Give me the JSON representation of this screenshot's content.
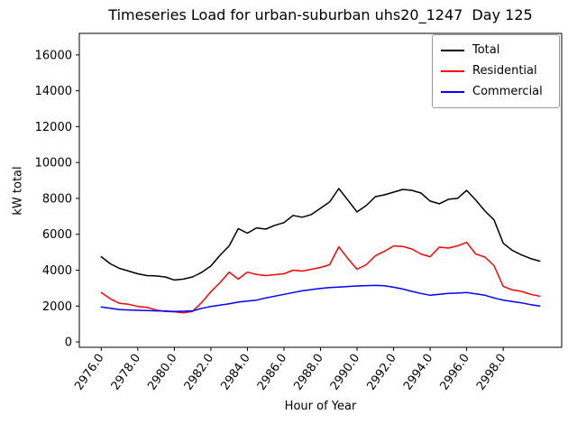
{
  "title": "Timeseries Load for urban-suburban uhs20_1247  Day 125",
  "chart_data": {
    "type": "line",
    "title": "Timeseries Load for urban-suburban uhs20_1247  Day 125",
    "xlabel": "Hour of Year",
    "ylabel": "kW total",
    "grid": false,
    "legend_position": "upper right",
    "xlim": [
      2974.8,
      3001.2
    ],
    "ylim": [
      -300,
      17200
    ],
    "xticks": [
      2976,
      2978,
      2980,
      2982,
      2984,
      2986,
      2988,
      2990,
      2992,
      2994,
      2996,
      2998
    ],
    "xtick_labels": [
      "2976.0",
      "2978.0",
      "2980.0",
      "2982.0",
      "2984.0",
      "2986.0",
      "2988.0",
      "2990.0",
      "2992.0",
      "2994.0",
      "2996.0",
      "2998.0"
    ],
    "yticks": [
      0,
      2000,
      4000,
      6000,
      8000,
      10000,
      12000,
      14000,
      16000
    ],
    "x": [
      2976.0,
      2976.5,
      2977.0,
      2977.5,
      2978.0,
      2978.5,
      2979.0,
      2979.5,
      2980.0,
      2980.5,
      2981.0,
      2981.5,
      2982.0,
      2982.5,
      2983.0,
      2983.5,
      2984.0,
      2984.5,
      2985.0,
      2985.5,
      2986.0,
      2986.5,
      2987.0,
      2987.5,
      2988.0,
      2988.5,
      2989.0,
      2989.5,
      2990.0,
      2990.5,
      2991.0,
      2991.5,
      2992.0,
      2992.5,
      2993.0,
      2993.5,
      2994.0,
      2994.5,
      2995.0,
      2995.5,
      2996.0,
      2996.5,
      2997.0,
      2997.5,
      2998.0,
      2998.5,
      2999.0,
      2999.5,
      3000.0
    ],
    "series": [
      {
        "name": "Total",
        "color": "#000000",
        "values": [
          4750,
          4350,
          4100,
          3950,
          3800,
          3700,
          3680,
          3620,
          3450,
          3500,
          3620,
          3880,
          4230,
          4830,
          5350,
          6320,
          6060,
          6360,
          6290,
          6500,
          6650,
          7050,
          6950,
          7100,
          7450,
          7800,
          8550,
          7900,
          7250,
          7600,
          8100,
          8200,
          8350,
          8500,
          8450,
          8300,
          7850,
          7700,
          7950,
          8000,
          8450,
          7900,
          7300,
          6800,
          5500,
          5100,
          4850,
          4650,
          4500
        ]
      },
      {
        "name": "Residential",
        "color": "#ff0000",
        "values": [
          2750,
          2400,
          2150,
          2100,
          1980,
          1930,
          1780,
          1700,
          1680,
          1620,
          1700,
          2200,
          2800,
          3300,
          3890,
          3500,
          3890,
          3760,
          3700,
          3750,
          3800,
          4000,
          3950,
          4050,
          4150,
          4300,
          5300,
          4650,
          4050,
          4300,
          4800,
          5050,
          5350,
          5320,
          5180,
          4900,
          4750,
          5280,
          5230,
          5350,
          5550,
          4900,
          4730,
          4250,
          3100,
          2900,
          2820,
          2650,
          2550
        ]
      },
      {
        "name": "Commercial",
        "color": "#0000ff",
        "values": [
          1950,
          1870,
          1800,
          1780,
          1760,
          1750,
          1730,
          1720,
          1700,
          1710,
          1730,
          1870,
          1980,
          2050,
          2130,
          2220,
          2280,
          2330,
          2450,
          2550,
          2650,
          2750,
          2850,
          2920,
          2980,
          3030,
          3060,
          3090,
          3120,
          3140,
          3150,
          3130,
          3050,
          2950,
          2820,
          2700,
          2600,
          2650,
          2700,
          2720,
          2750,
          2680,
          2600,
          2450,
          2330,
          2250,
          2180,
          2080,
          2000
        ]
      }
    ]
  }
}
